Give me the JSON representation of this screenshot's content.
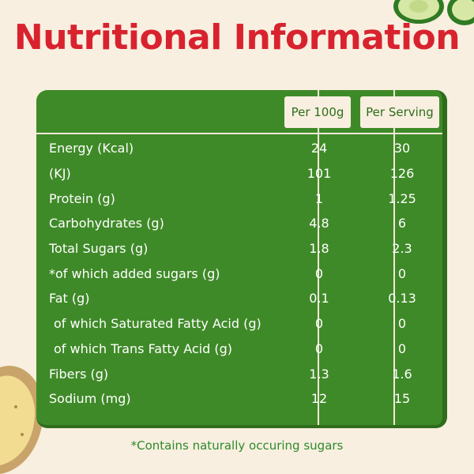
{
  "title": "Nutritional Information",
  "table": {
    "headers": {
      "per_100g": "Per 100g",
      "per_serving": "Per Serving"
    },
    "rows": [
      {
        "label": "Energy (Kcal)",
        "per_100g": "24",
        "per_serving": "30"
      },
      {
        "label": "(KJ)",
        "per_100g": "101",
        "per_serving": "126"
      },
      {
        "label": "Protein (g)",
        "per_100g": "1",
        "per_serving": "1.25"
      },
      {
        "label": "Carbohydrates (g)",
        "per_100g": "4.8",
        "per_serving": "6"
      },
      {
        "label": "Total Sugars (g)",
        "per_100g": "1.8",
        "per_serving": "2.3"
      },
      {
        "label": "*of which added sugars (g)",
        "per_100g": "0",
        "per_serving": "0"
      },
      {
        "label": "Fat (g)",
        "per_100g": "0.1",
        "per_serving": "0.13"
      },
      {
        "label": "of which Saturated Fatty Acid (g)",
        "per_100g": "0",
        "per_serving": "0"
      },
      {
        "label": "of which Trans Fatty Acid (g)",
        "per_100g": "0",
        "per_serving": "0"
      },
      {
        "label": "Fibers (g)",
        "per_100g": "1.3",
        "per_serving": "1.6"
      },
      {
        "label": "Sodium (mg)",
        "per_100g": "12",
        "per_serving": "15"
      }
    ]
  },
  "footnote": "*Contains naturally occuring sugars",
  "decorations": [
    "zucchini-slice-icon",
    "potato-icon"
  ],
  "colors": {
    "title": "#d8232f",
    "panel": "#3f8a28",
    "background": "#f8efe0",
    "footnote": "#2e8a2a"
  }
}
